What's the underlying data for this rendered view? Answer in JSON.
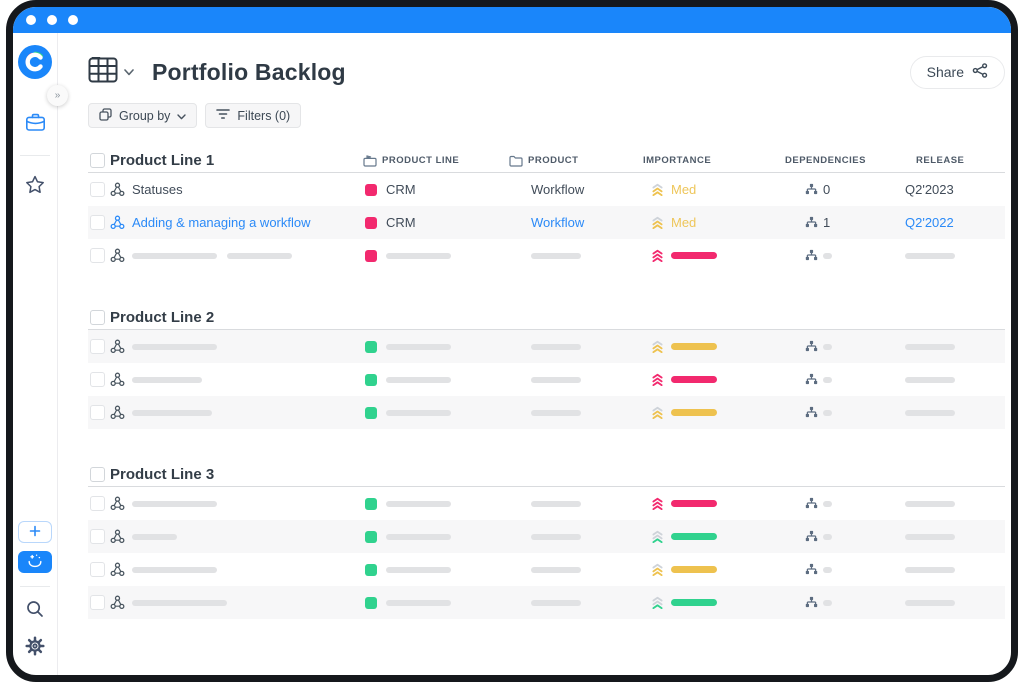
{
  "colors": {
    "accent_blue": "#1a86fa",
    "link_blue": "#2b8af7",
    "pink": "#f2296e",
    "yellow": "#eec24f",
    "yellow_text": "#eec65a",
    "green": "#30d28e",
    "chevron_gray": "#ced3d9",
    "skeleton_gray": "#e1e2e4"
  },
  "titlebar": {
    "dots": [
      "dot",
      "dot",
      "dot"
    ]
  },
  "sidebar": {
    "icons": [
      "craft-logo",
      "collapse-chevrons",
      "portfolio-briefcase",
      "favorites-star",
      "add-plus",
      "ideas-hand-sparkle",
      "search-magnifier",
      "settings-gear"
    ],
    "expand_glyph": "»"
  },
  "header": {
    "title": "Portfolio Backlog",
    "share_label": "Share"
  },
  "toolbar": {
    "group_by": "Group by",
    "filters": "Filters (0)"
  },
  "table": {
    "columns": [
      {
        "label": "PRODUCT LINE",
        "icon": "folder-flag-icon"
      },
      {
        "label": "PRODUCT",
        "icon": "folder-icon"
      },
      {
        "label": "IMPORTANCE",
        "icon": null
      },
      {
        "label": "DEPENDENCIES",
        "icon": null
      },
      {
        "label": "RELEASE",
        "icon": null
      }
    ],
    "groups": [
      {
        "label": "Product Line 1",
        "rows": [
          {
            "kind": "data",
            "title": "Statuses",
            "link": false,
            "product_line": "CRM",
            "pl_color": "pink",
            "product": "Workflow",
            "importance": "med",
            "importance_label": "Med",
            "dependencies": "0",
            "release": "Q2'2023"
          },
          {
            "kind": "data",
            "title": "Adding & managing a workflow",
            "link": true,
            "product_line": "CRM",
            "pl_color": "pink",
            "product": "Workflow",
            "importance": "med",
            "importance_label": "Med",
            "dependencies": "1",
            "release": "Q2'2022"
          },
          {
            "kind": "skeleton",
            "title_bars": [
              85,
              65
            ],
            "pl_color": "pink",
            "importance": "high"
          }
        ]
      },
      {
        "label": "Product Line 2",
        "rows": [
          {
            "kind": "skeleton",
            "title_bars": [
              85
            ],
            "pl_color": "green",
            "importance": "med"
          },
          {
            "kind": "skeleton",
            "title_bars": [
              70
            ],
            "pl_color": "green",
            "importance": "high"
          },
          {
            "kind": "skeleton",
            "title_bars": [
              80
            ],
            "pl_color": "green",
            "importance": "med"
          }
        ]
      },
      {
        "label": "Product Line 3",
        "rows": [
          {
            "kind": "skeleton",
            "title_bars": [
              85
            ],
            "pl_color": "green",
            "importance": "high"
          },
          {
            "kind": "skeleton",
            "title_bars": [
              45
            ],
            "pl_color": "green",
            "importance": "low"
          },
          {
            "kind": "skeleton",
            "title_bars": [
              85
            ],
            "pl_color": "green",
            "importance": "med"
          },
          {
            "kind": "skeleton",
            "title_bars": [
              95
            ],
            "pl_color": "green",
            "importance": "low"
          }
        ]
      }
    ]
  }
}
